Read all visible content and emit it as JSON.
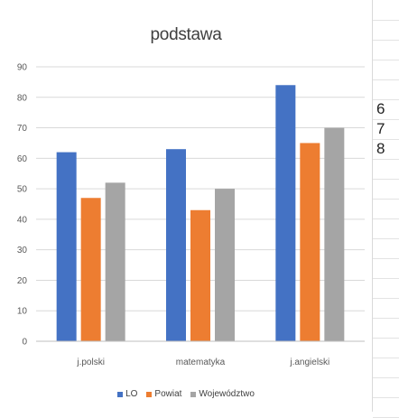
{
  "chart_data": {
    "type": "bar",
    "title": "podstawa",
    "categories": [
      "j.polski",
      "matematyka",
      "j.angielski"
    ],
    "series": [
      {
        "name": "LO",
        "color": "#4472c4",
        "values": [
          62,
          63,
          84
        ]
      },
      {
        "name": "Powiat",
        "color": "#ed7d31",
        "values": [
          47,
          43,
          65
        ]
      },
      {
        "name": "Województwo",
        "color": "#a5a5a5",
        "values": [
          52,
          50,
          70
        ]
      }
    ],
    "ylim": [
      0,
      90
    ],
    "yticks": [
      0,
      10,
      20,
      30,
      40,
      50,
      60,
      70,
      80,
      90
    ],
    "grid": true,
    "legend_position": "bottom",
    "xlabel": "",
    "ylabel": ""
  },
  "sheet_cells": [
    "6",
    "7",
    "8"
  ]
}
